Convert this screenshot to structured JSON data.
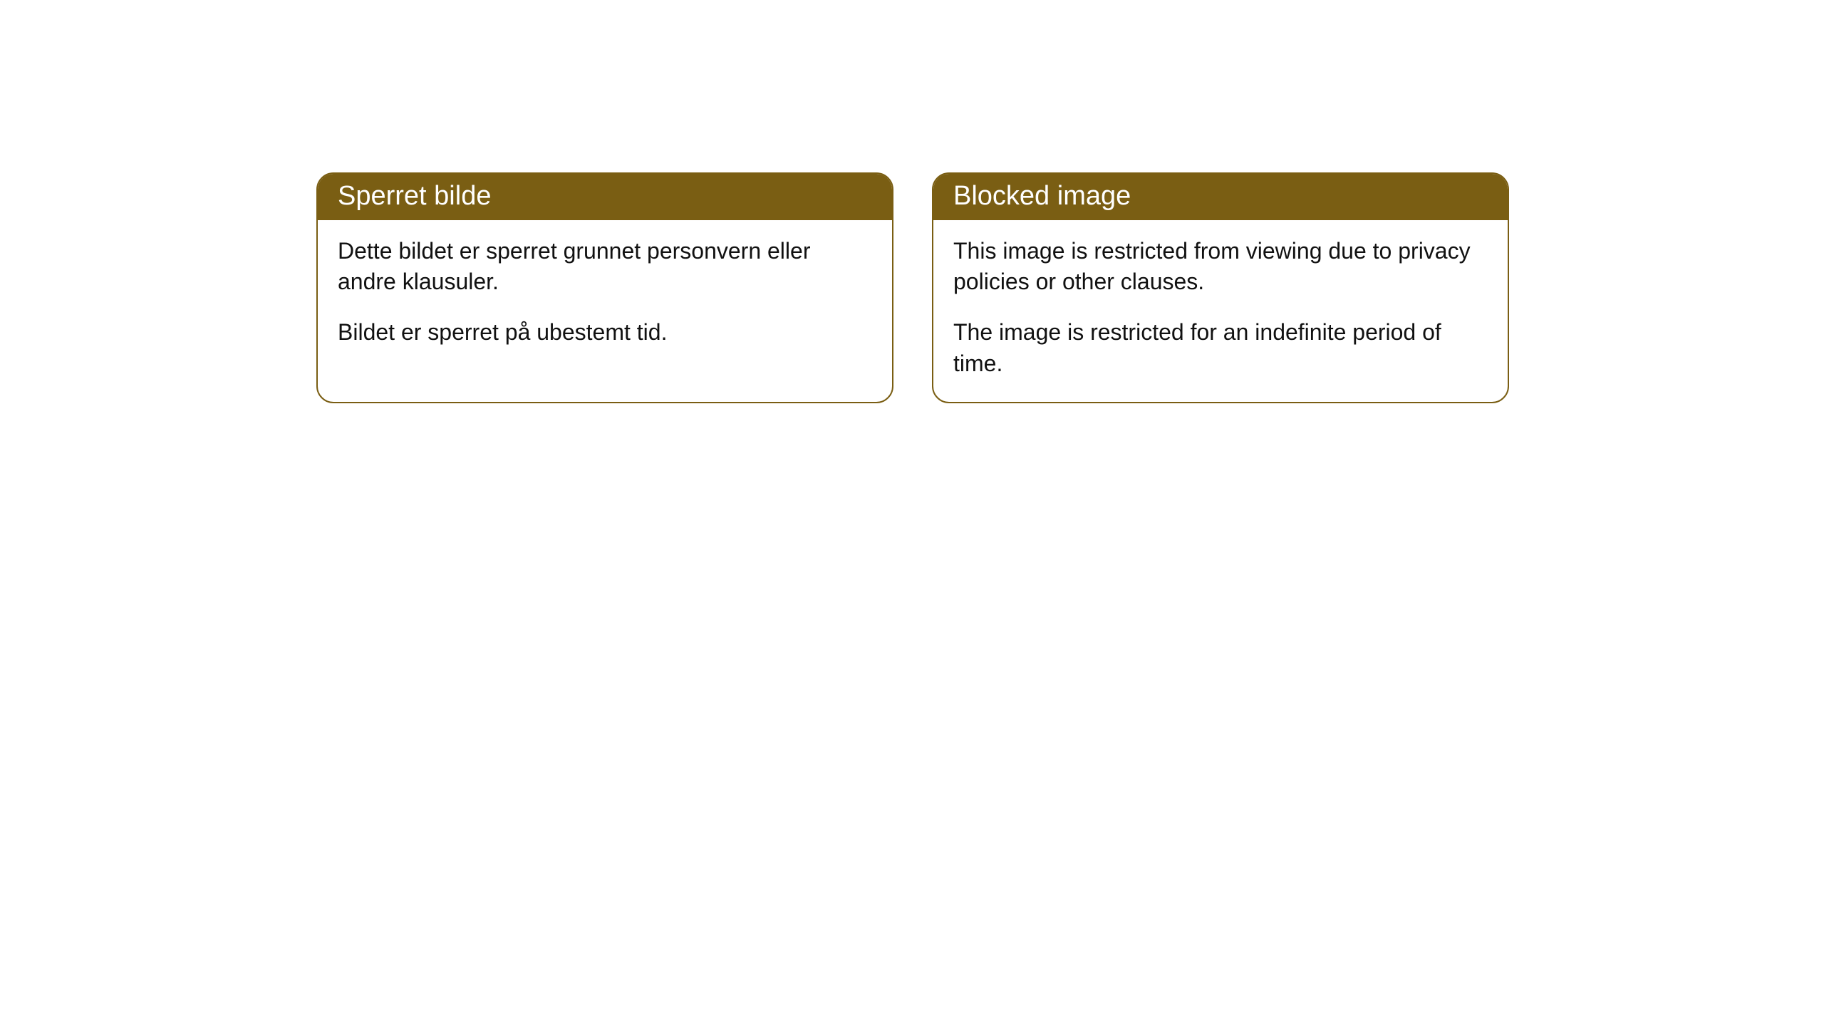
{
  "cards": [
    {
      "title": "Sperret bilde",
      "paragraph1": "Dette bildet er sperret grunnet personvern eller andre klausuler.",
      "paragraph2": "Bildet er sperret på ubestemt tid."
    },
    {
      "title": "Blocked image",
      "paragraph1": "This image is restricted from viewing due to privacy policies or other clauses.",
      "paragraph2": "The image is restricted for an indefinite period of time."
    }
  ],
  "styling": {
    "header_background": "#7a5e13",
    "header_text_color": "#ffffff",
    "border_color": "#7a5e13",
    "body_background": "#ffffff",
    "body_text_color": "#111111",
    "border_radius": 24,
    "title_fontsize": 38,
    "body_fontsize": 32
  }
}
